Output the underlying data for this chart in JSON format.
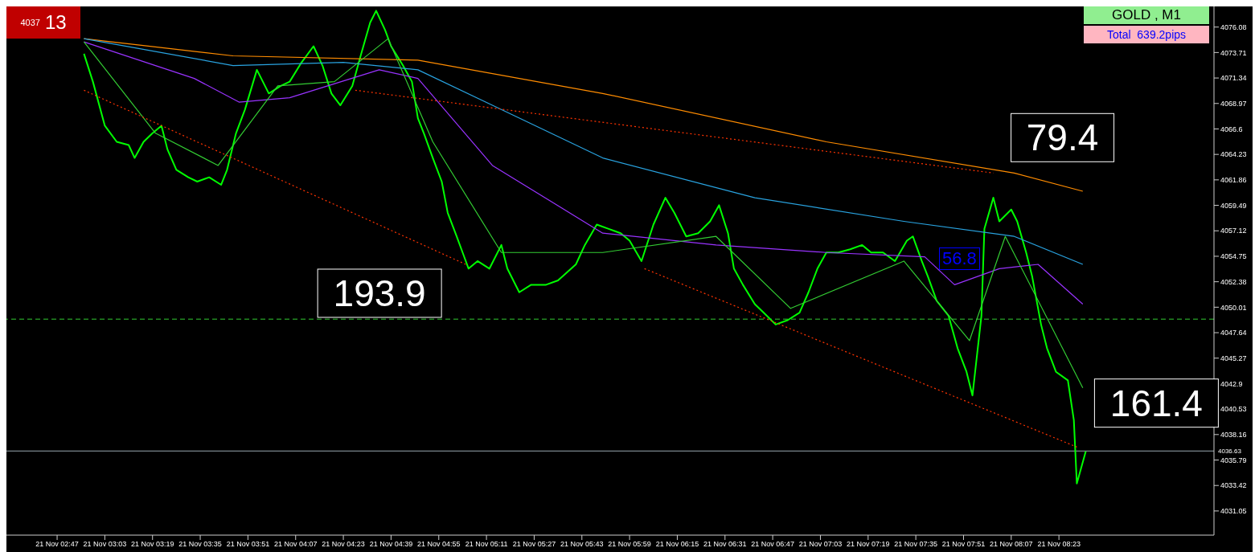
{
  "chart_data": {
    "type": "line",
    "title": "GOLD , M1",
    "subtitle": "Total  639.2pips",
    "annotations": [
      "4037",
      "13",
      "56.8",
      {
        "text": "79.4",
        "x": "--11-21T08:01",
        "y": 4062.5
      },
      {
        "text": "193.9",
        "x": "--11-21T05:04",
        "y": 4054.0
      },
      {
        "text": "161.4",
        "x": "--11-21T08:29",
        "y": 4036.6
      }
    ],
    "xlim": [
      "--11-21T02:30",
      "--11-21T09:15"
    ],
    "xticks": [
      {
        "value": "--11-21T02:47",
        "label": "21 Nov 02:47"
      },
      {
        "value": "--11-21T03:03",
        "label": "21 Nov 03:03"
      },
      {
        "value": "--11-21T03:19",
        "label": "21 Nov 03:19"
      },
      {
        "value": "--11-21T03:35",
        "label": "21 Nov 03:35"
      },
      {
        "value": "--11-21T03:51",
        "label": "21 Nov 03:51"
      },
      {
        "value": "--11-21T04:07",
        "label": "21 Nov 04:07"
      },
      {
        "value": "--11-21T04:23",
        "label": "21 Nov 04:23"
      },
      {
        "value": "--11-21T04:39",
        "label": "21 Nov 04:39"
      },
      {
        "value": "--11-21T04:55",
        "label": "21 Nov 04:55"
      },
      {
        "value": "--11-21T05:11",
        "label": "21 Nov 05:11"
      },
      {
        "value": "--11-21T05:27",
        "label": "21 Nov 05:27"
      },
      {
        "value": "--11-21T05:43",
        "label": "21 Nov 05:43"
      },
      {
        "value": "--11-21T05:59",
        "label": "21 Nov 05:59"
      },
      {
        "value": "--11-21T06:15",
        "label": "21 Nov 06:15"
      },
      {
        "value": "--11-21T06:31",
        "label": "21 Nov 06:31"
      },
      {
        "value": "--11-21T06:47",
        "label": "21 Nov 06:47"
      },
      {
        "value": "--11-21T07:03",
        "label": "21 Nov 07:03"
      },
      {
        "value": "--11-21T07:19",
        "label": "21 Nov 07:19"
      },
      {
        "value": "--11-21T07:35",
        "label": "21 Nov 07:35"
      },
      {
        "value": "--11-21T07:51",
        "label": "21 Nov 07:51"
      },
      {
        "value": "--11-21T08:07",
        "label": "21 Nov 08:07"
      },
      {
        "value": "--11-21T08:23",
        "label": "21 Nov 08:23"
      }
    ],
    "ylim": [
      4028.8,
      4078.0
    ],
    "yticks": [
      {
        "value": 4031.05,
        "label": "4031.05"
      },
      4033.42,
      4035.79,
      4038.16,
      4040.53,
      4042.9,
      4045.27,
      4047.64,
      4050.01,
      4052.38,
      4054.75,
      4057.12,
      4059.49,
      4061.86,
      4064.23,
      4066.6,
      4068.97,
      4071.34,
      4073.71,
      4076.08
    ],
    "marker": "none",
    "ref_lines": [
      {
        "axis": "y",
        "value": 4048.9,
        "color": "#33cc33",
        "line_style": "dashed"
      },
      {
        "axis": "y",
        "value": 4036.63,
        "label": "4036.63",
        "color": "#9aa8b0",
        "line_style": "solid"
      }
    ],
    "series": [
      {
        "color": "#00ff00",
        "x": [
          "--11-21T02:56",
          "--11-21T02:59",
          "--11-21T03:03",
          "--11-21T03:07",
          "--11-21T03:11",
          "--11-21T03:13",
          "--11-21T03:16",
          "--11-21T03:19",
          "--11-21T03:22",
          "--11-21T03:24",
          "--11-21T03:27",
          "--11-21T03:31",
          "--11-21T03:34",
          "--11-21T03:38",
          "--11-21T03:42",
          "--11-21T03:44",
          "--11-21T03:47",
          "--11-21T03:50",
          "--11-21T03:54",
          "--11-21T03:58",
          "--11-21T04:02",
          "--11-21T04:05",
          "--11-21T04:09",
          "--11-21T04:13",
          "--11-21T04:16",
          "--11-21T04:19",
          "--11-21T04:22",
          "--11-21T04:26",
          "--11-21T04:29",
          "--11-21T04:32",
          "--11-21T04:34",
          "--11-21T04:37",
          "--11-21T04:39",
          "--11-21T04:43",
          "--11-21T04:46",
          "--11-21T04:48",
          "--11-21T04:50",
          "--11-21T04:53",
          "--11-21T04:56",
          "--11-21T04:58",
          "--11-21T05:01",
          "--11-21T05:03",
          "--11-21T05:05",
          "--11-21T05:08",
          "--11-21T05:12",
          "--11-21T05:16",
          "--11-21T05:18",
          "--11-21T05:22",
          "--11-21T05:26",
          "--11-21T05:31",
          "--11-21T05:35",
          "--11-21T05:41",
          "--11-21T05:44",
          "--11-21T05:48",
          "--11-21T05:52",
          "--11-21T05:56",
          "--11-21T05:59",
          "--11-21T06:03",
          "--11-21T06:07",
          "--11-21T06:11",
          "--11-21T06:14",
          "--11-21T06:18",
          "--11-21T06:22",
          "--11-21T06:26",
          "--11-21T06:29",
          "--11-21T06:32",
          "--11-21T06:34",
          "--11-21T06:37",
          "--11-21T06:41",
          "--11-21T06:44",
          "--11-21T06:48",
          "--11-21T06:52",
          "--11-21T06:56",
          "--11-21T06:59",
          "--11-21T07:02",
          "--11-21T07:05",
          "--11-21T07:09",
          "--11-21T07:13",
          "--11-21T07:17",
          "--11-21T07:20",
          "--11-21T07:24",
          "--11-21T07:28",
          "--11-21T07:32",
          "--11-21T07:34",
          "--11-21T07:37",
          "--11-21T07:39",
          "--11-21T07:42",
          "--11-21T07:46",
          "--11-21T07:49",
          "--11-21T07:52",
          "--11-21T07:54",
          "--11-21T07:57",
          "--11-21T07:58",
          "--11-21T08:01",
          "--11-21T08:03",
          "--11-21T08:07",
          "--11-21T08:09",
          "--11-21T08:12",
          "--11-21T08:14",
          "--11-21T08:17",
          "--11-21T08:19",
          "--11-21T08:22",
          "--11-21T08:26",
          "--11-21T08:28",
          "--11-21T08:29",
          "--11-21T08:32"
        ],
        "values": [
          4073.6,
          4071.0,
          4066.9,
          4065.4,
          4065.1,
          4063.9,
          4065.4,
          4066.2,
          4066.9,
          4064.7,
          4062.8,
          4062.1,
          4061.7,
          4062.1,
          4061.4,
          4062.8,
          4066.2,
          4068.4,
          4072.1,
          4069.9,
          4070.6,
          4071.0,
          4072.8,
          4074.3,
          4072.5,
          4069.9,
          4068.8,
          4070.6,
          4073.6,
          4076.5,
          4077.6,
          4075.8,
          4074.3,
          4072.5,
          4071.0,
          4067.6,
          4066.2,
          4063.9,
          4061.7,
          4058.8,
          4056.6,
          4055.1,
          4053.6,
          4054.3,
          4053.6,
          4055.8,
          4053.6,
          4051.4,
          4052.1,
          4052.1,
          4052.5,
          4054.0,
          4055.8,
          4057.7,
          4057.3,
          4056.9,
          4056.2,
          4054.3,
          4057.7,
          4060.2,
          4058.8,
          4056.6,
          4056.9,
          4058.0,
          4059.5,
          4056.9,
          4053.6,
          4052.1,
          4050.3,
          4049.5,
          4048.4,
          4048.8,
          4049.5,
          4051.4,
          4053.6,
          4055.1,
          4055.1,
          4055.4,
          4055.8,
          4055.1,
          4055.1,
          4054.3,
          4056.2,
          4056.6,
          4054.3,
          4052.9,
          4050.6,
          4049.2,
          4046.2,
          4044.0,
          4041.8,
          4049.2,
          4057.3,
          4060.2,
          4058.0,
          4059.1,
          4058.0,
          4055.1,
          4052.9,
          4048.4,
          4046.2,
          4044.0,
          4043.2,
          4039.5,
          4033.6,
          4036.6
        ]
      },
      {
        "color": "#ff8c00",
        "x": [
          "--11-21T02:56",
          "--11-21T03:46",
          "--11-21T04:48",
          "--11-21T05:50",
          "--11-21T07:05",
          "--11-21T08:08",
          "--11-21T08:31"
        ],
        "values": [
          4075.0,
          4073.4,
          4073.0,
          4069.9,
          4065.4,
          4062.5,
          4060.8
        ]
      },
      {
        "color": "#29a3e0",
        "x": [
          "--11-21T02:56",
          "--11-21T03:46",
          "--11-21T04:23",
          "--11-21T04:48",
          "--11-21T05:13",
          "--11-21T05:50",
          "--11-21T06:41",
          "--11-21T07:31",
          "--11-21T08:08",
          "--11-21T08:31"
        ],
        "values": [
          4075.0,
          4072.5,
          4072.8,
          4072.1,
          4068.8,
          4063.9,
          4060.2,
          4058.0,
          4056.6,
          4054.0
        ]
      },
      {
        "color": "#9933ff",
        "x": [
          "--11-21T02:56",
          "--11-21T03:33",
          "--11-21T03:48",
          "--11-21T04:05",
          "--11-21T04:35",
          "--11-21T04:48",
          "--11-21T05:13",
          "--11-21T05:50",
          "--11-21T06:28",
          "--11-21T07:05",
          "--11-21T07:38",
          "--11-21T07:48",
          "--11-21T08:03",
          "--11-21T08:16",
          "--11-21T08:31"
        ],
        "values": [
          4074.7,
          4071.3,
          4069.1,
          4069.5,
          4072.1,
          4071.3,
          4063.2,
          4056.9,
          4055.8,
          4055.1,
          4054.7,
          4052.1,
          4053.6,
          4054.0,
          4050.3
        ]
      },
      {
        "color": "#33cc33",
        "x": [
          "--11-21T02:56",
          "--11-21T03:20",
          "--11-21T03:41",
          "--11-21T04:01",
          "--11-21T04:20",
          "--11-21T04:38",
          "--11-21T04:53",
          "--11-21T05:16",
          "--11-21T05:50",
          "--11-21T06:28",
          "--11-21T06:53",
          "--11-21T07:31",
          "--11-21T07:53",
          "--11-21T08:05",
          "--11-21T08:31"
        ],
        "values": [
          4074.7,
          4066.2,
          4063.2,
          4070.6,
          4071.0,
          4075.0,
          4065.4,
          4055.1,
          4055.1,
          4056.6,
          4049.9,
          4054.3,
          4046.9,
          4056.6,
          4042.5
        ]
      },
      {
        "color": "#ff3300",
        "line_style": "dotted",
        "x": [
          "--11-21T02:56",
          "--11-21T05:04"
        ],
        "values": [
          4070.2,
          4054.0
        ]
      },
      {
        "color": "#ff3300",
        "line_style": "dotted",
        "x": [
          "--11-21T06:04",
          "--11-21T08:29"
        ],
        "values": [
          4053.6,
          4037.0
        ]
      },
      {
        "color": "#ff3300",
        "line_style": "dotted",
        "x": [
          "--11-21T04:27",
          "--11-21T08:01"
        ],
        "values": [
          4070.2,
          4062.5
        ]
      }
    ]
  }
}
